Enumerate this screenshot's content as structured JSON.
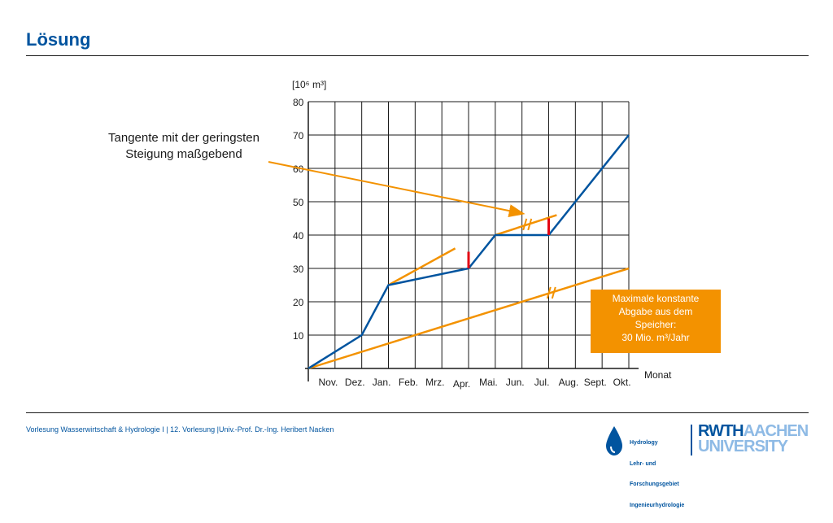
{
  "slide": {
    "title": "Lösung",
    "footer": "Vorlesung Wasserwirtschaft & Hydrologie I | 12. Vorlesung |Univ.-Prof. Dr.-Ing. Heribert Nacken"
  },
  "callout": {
    "line1": "Tangente mit der geringsten",
    "line2": "Steigung maßgebend"
  },
  "info_box": {
    "line1": "Maximale konstante",
    "line2": "Abgabe aus dem",
    "line3": "Speicher:",
    "line4": "30 Mio. m³/Jahr"
  },
  "logos": {
    "hydro_lines": [
      "Hydrology",
      "Lehr- und",
      "Forschungsgebiet",
      "Ingenieurhydrologie"
    ],
    "rwth_part1": "RWTH",
    "rwth_part2": "AACHEN",
    "rwth_line2": "UNIVERSITY"
  },
  "colors": {
    "title": "#00549f",
    "curve": "#00549f",
    "tangent": "#f39200",
    "deficit": "#e30613",
    "grid": "#1a1a1a"
  },
  "chart_data": {
    "type": "line",
    "ylabel": "[10⁶ m³]",
    "xlabel": "Monat",
    "ylim": [
      0,
      80
    ],
    "yticks": [
      10,
      20,
      30,
      40,
      50,
      60,
      70,
      80
    ],
    "grid": true,
    "categories": [
      "Nov.",
      "Dez.",
      "Jan.",
      "Feb.",
      "Mrz.",
      "Apr.",
      "Mai.",
      "Jun.",
      "Jul.",
      "Aug.",
      "Sept.",
      "Okt."
    ],
    "series": [
      {
        "role": "cumulative inflow",
        "x": [
          0,
          2,
          3,
          6,
          7,
          9,
          12
        ],
        "y": [
          0,
          10,
          25,
          30,
          40,
          40,
          70
        ]
      }
    ],
    "tangents": [
      {
        "x": [
          0,
          12
        ],
        "y": [
          0,
          30
        ]
      },
      {
        "x": [
          3,
          5.5
        ],
        "y": [
          25,
          36
        ]
      },
      {
        "x": [
          7,
          9.3
        ],
        "y": [
          40,
          46
        ]
      }
    ],
    "deficits": [
      {
        "x": 6,
        "y": [
          30,
          35
        ]
      },
      {
        "x": 9,
        "y": [
          40,
          45
        ]
      }
    ]
  }
}
